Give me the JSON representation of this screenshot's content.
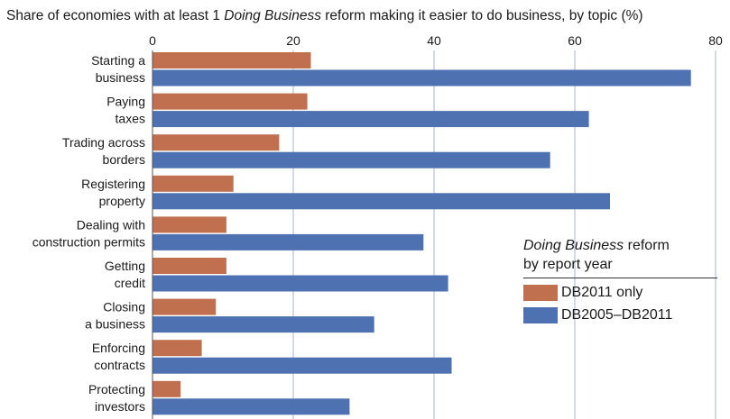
{
  "title": {
    "prefix": "Share of economies with at least 1 ",
    "italic": "Doing Business",
    "suffix": " reform making it easier to do business, by topic (%)"
  },
  "legend": {
    "title_italic": "Doing Business",
    "title_rest": " reform",
    "title_line2": "by report year"
  },
  "chart_data": {
    "type": "bar",
    "orientation": "horizontal",
    "categories": [
      [
        "Starting a",
        "business"
      ],
      [
        "Paying",
        "taxes"
      ],
      [
        "Trading across",
        "borders"
      ],
      [
        "Registering",
        "property"
      ],
      [
        "Dealing with",
        "construction permits"
      ],
      [
        "Getting",
        "credit"
      ],
      [
        "Closing",
        "a business"
      ],
      [
        "Enforcing",
        "contracts"
      ],
      [
        "Protecting",
        "investors"
      ]
    ],
    "series": [
      {
        "name": "DB2011 only",
        "color": "#c0704f",
        "values": [
          22.5,
          22,
          18,
          11.5,
          10.5,
          10.5,
          9,
          7,
          4
        ]
      },
      {
        "name": "DB2005–DB2011",
        "color": "#4e72b1",
        "values": [
          76.5,
          62,
          56.5,
          65,
          38.5,
          42,
          31.5,
          42.5,
          28
        ]
      }
    ],
    "xlim": [
      0,
      80
    ],
    "xticks": [
      0,
      20,
      40,
      60,
      80
    ],
    "grid": true,
    "legend_position": "right"
  }
}
